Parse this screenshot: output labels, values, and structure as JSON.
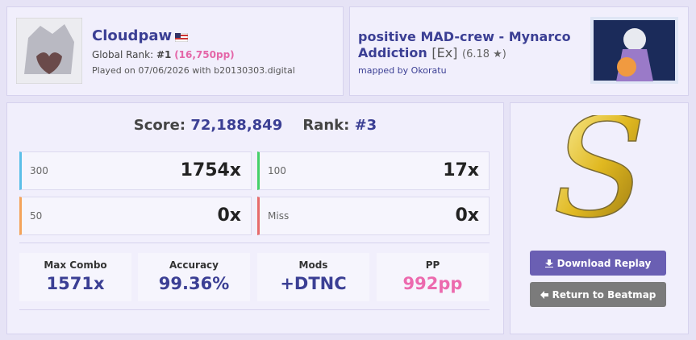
{
  "player": {
    "name": "Cloudpaw",
    "rank_label": "Global Rank:",
    "rank": "#1",
    "pp": "(16,750pp)",
    "played": "Played on 07/06/2026 with b20130303.digital"
  },
  "beatmap": {
    "title": "positive MAD-crew - Mynarco Addiction",
    "difficulty": "[Ex]",
    "stars": "(6.18 ★)",
    "mapper": "mapped by Okoratu"
  },
  "score": {
    "label": "Score:",
    "value": "72,188,849",
    "rank_label": "Rank:",
    "rank": "#3"
  },
  "hits": [
    {
      "label": "300",
      "value": "1754x"
    },
    {
      "label": "100",
      "value": "17x"
    },
    {
      "label": "50",
      "value": "0x"
    },
    {
      "label": "Miss",
      "value": "0x"
    }
  ],
  "stats": [
    {
      "label": "Max Combo",
      "value": "1571x"
    },
    {
      "label": "Accuracy",
      "value": "99.36%"
    },
    {
      "label": "Mods",
      "value": "+DTNC"
    },
    {
      "label": "PP",
      "value": "992pp"
    }
  ],
  "grade": "S",
  "buttons": {
    "download": "Download Replay",
    "return": "Return to Beatmap"
  }
}
